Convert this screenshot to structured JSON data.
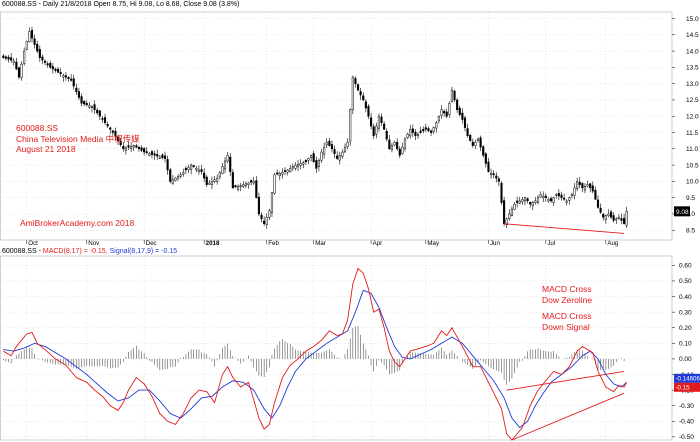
{
  "header_price": "600088.SS - Daily 21/8/2018 Open 8.75, Hi 9.08, Lo 8.68, Close 9.08 (3.8%)",
  "header_macd": {
    "prefix": "600088.SS - ",
    "macd_label": "MACD(8,17) = -0.15,",
    "signal_label": "Signal(8,17,9) = -0.15"
  },
  "annotations": {
    "ticker": "600088.SS",
    "company": "China Television Media 中视传媒",
    "date": "August 21 2018",
    "website": "AmiBrokerAcademy.com  2018",
    "cross1_line1": "MACD Cross",
    "cross1_line2": "Dow Zeroline",
    "cross2_line1": "MACD Cross",
    "cross2_line2": "Down Signal"
  },
  "colors": {
    "candle": "#000000",
    "macd": "#e31a1c",
    "signal": "#1f3ad6",
    "histogram": "#555555",
    "trendline": "#e31a1c",
    "grid": "#c8c8c8"
  },
  "chart_data": [
    {
      "type": "candlestick",
      "title": "600088.SS - Daily 21/8/2018 Open 8.75, Hi 9.08, Lo 8.68, Close 9.08 (3.8%)",
      "ylim": [
        8.2,
        15.2
      ],
      "yticks": [
        8.5,
        9.0,
        9.5,
        10.0,
        10.5,
        11.0,
        11.5,
        12.0,
        12.5,
        13.0,
        13.5,
        14.0,
        14.5,
        15.0
      ],
      "ytick_labels": [
        "8.5",
        "9.0",
        "9.5",
        "10.0",
        "10.5",
        "11.0",
        "11.5",
        "12.0",
        "12.5",
        "13.0",
        "13.5",
        "14.0",
        "14.5",
        "15.0"
      ],
      "x_labels": [
        "Oct",
        "Nov",
        "Dec",
        "2018",
        "Feb",
        "Mar",
        "Apr",
        "May",
        "Jun",
        "Jul",
        "Aug"
      ],
      "x_label_bar_index": [
        9,
        32,
        54,
        77,
        101,
        119,
        141,
        162,
        186,
        208,
        231
      ],
      "last_price_label": "9.08",
      "close_path": [
        [
          0,
          13.8
        ],
        [
          4,
          13.7
        ],
        [
          6,
          13.2
        ],
        [
          8,
          14.0
        ],
        [
          10,
          14.6
        ],
        [
          12,
          14.2
        ],
        [
          14,
          13.8
        ],
        [
          18,
          13.5
        ],
        [
          22,
          13.3
        ],
        [
          26,
          13.1
        ],
        [
          30,
          12.4
        ],
        [
          34,
          12.3
        ],
        [
          38,
          11.9
        ],
        [
          42,
          11.5
        ],
        [
          46,
          11.0
        ],
        [
          50,
          11.1
        ],
        [
          54,
          10.9
        ],
        [
          58,
          10.8
        ],
        [
          62,
          10.7
        ],
        [
          64,
          10.0
        ],
        [
          68,
          10.2
        ],
        [
          72,
          10.5
        ],
        [
          76,
          10.3
        ],
        [
          78,
          9.9
        ],
        [
          82,
          10.1
        ],
        [
          86,
          10.8
        ],
        [
          88,
          9.8
        ],
        [
          92,
          9.9
        ],
        [
          96,
          10.0
        ],
        [
          98,
          9.0
        ],
        [
          100,
          8.7
        ],
        [
          102,
          9.1
        ],
        [
          104,
          10.2
        ],
        [
          108,
          10.3
        ],
        [
          112,
          10.5
        ],
        [
          116,
          10.6
        ],
        [
          118,
          10.8
        ],
        [
          120,
          10.4
        ],
        [
          122,
          10.9
        ],
        [
          124,
          11.2
        ],
        [
          126,
          11.0
        ],
        [
          128,
          10.7
        ],
        [
          130,
          10.9
        ],
        [
          132,
          11.2
        ],
        [
          134,
          13.2
        ],
        [
          136,
          12.8
        ],
        [
          138,
          12.5
        ],
        [
          140,
          12.0
        ],
        [
          142,
          11.4
        ],
        [
          144,
          12.0
        ],
        [
          146,
          11.6
        ],
        [
          148,
          11.0
        ],
        [
          150,
          11.2
        ],
        [
          152,
          10.8
        ],
        [
          154,
          11.3
        ],
        [
          156,
          11.6
        ],
        [
          158,
          11.4
        ],
        [
          160,
          11.5
        ],
        [
          162,
          11.6
        ],
        [
          164,
          11.5
        ],
        [
          166,
          11.8
        ],
        [
          168,
          12.2
        ],
        [
          170,
          12.0
        ],
        [
          172,
          12.8
        ],
        [
          174,
          12.2
        ],
        [
          176,
          11.9
        ],
        [
          178,
          11.4
        ],
        [
          180,
          11.1
        ],
        [
          182,
          11.3
        ],
        [
          184,
          10.8
        ],
        [
          186,
          10.3
        ],
        [
          188,
          10.2
        ],
        [
          190,
          10.0
        ],
        [
          192,
          8.7
        ],
        [
          194,
          9.0
        ],
        [
          196,
          9.3
        ],
        [
          198,
          9.4
        ],
        [
          200,
          9.5
        ],
        [
          202,
          9.3
        ],
        [
          204,
          9.4
        ],
        [
          206,
          9.6
        ],
        [
          208,
          9.5
        ],
        [
          210,
          9.4
        ],
        [
          212,
          9.6
        ],
        [
          214,
          9.5
        ],
        [
          216,
          9.4
        ],
        [
          218,
          9.6
        ],
        [
          220,
          10.0
        ],
        [
          222,
          9.8
        ],
        [
          224,
          9.9
        ],
        [
          226,
          9.7
        ],
        [
          228,
          9.2
        ],
        [
          230,
          8.9
        ],
        [
          232,
          9.0
        ],
        [
          234,
          8.8
        ],
        [
          236,
          8.9
        ],
        [
          238,
          8.7
        ],
        [
          239,
          9.08
        ]
      ],
      "trendlines": [
        {
          "from": [
            192,
            8.7
          ],
          "to": [
            238,
            8.4
          ]
        }
      ]
    },
    {
      "type": "line",
      "title": "600088.SS - MACD(8,17) = -0.15, Signal(8,17,9) = -0.15",
      "ylim": [
        -0.52,
        0.66
      ],
      "yticks": [
        0.6,
        0.5,
        0.4,
        0.3,
        0.2,
        0.1,
        0.0,
        -0.1,
        -0.2,
        -0.3,
        -0.4,
        -0.5
      ],
      "ytick_labels": [
        "0.60",
        "0.50",
        "0.40",
        "0.30",
        "0.20",
        "0.10",
        "0.00",
        "-0.10",
        "-0.20",
        "-0.30",
        "-0.40",
        "-0.50"
      ],
      "value_labels": [
        "-0.14606",
        "-0.15"
      ],
      "series": [
        {
          "name": "MACD(8,17)",
          "points": [
            [
              0,
              0.05
            ],
            [
              3,
              0.02
            ],
            [
              5,
              0.08
            ],
            [
              7,
              0.12
            ],
            [
              9,
              0.16
            ],
            [
              11,
              0.17
            ],
            [
              13,
              0.1
            ],
            [
              16,
              0.06
            ],
            [
              20,
              0.0
            ],
            [
              24,
              -0.04
            ],
            [
              28,
              -0.12
            ],
            [
              32,
              -0.15
            ],
            [
              35,
              -0.2
            ],
            [
              38,
              -0.24
            ],
            [
              41,
              -0.3
            ],
            [
              44,
              -0.33
            ],
            [
              46,
              -0.28
            ],
            [
              48,
              -0.2
            ],
            [
              51,
              -0.12
            ],
            [
              54,
              -0.16
            ],
            [
              57,
              -0.24
            ],
            [
              60,
              -0.35
            ],
            [
              63,
              -0.4
            ],
            [
              66,
              -0.42
            ],
            [
              69,
              -0.35
            ],
            [
              72,
              -0.25
            ],
            [
              75,
              -0.2
            ],
            [
              78,
              -0.21
            ],
            [
              81,
              -0.28
            ],
            [
              84,
              -0.1
            ],
            [
              86,
              -0.05
            ],
            [
              88,
              -0.12
            ],
            [
              91,
              -0.18
            ],
            [
              94,
              -0.15
            ],
            [
              96,
              -0.26
            ],
            [
              98,
              -0.38
            ],
            [
              100,
              -0.45
            ],
            [
              102,
              -0.42
            ],
            [
              104,
              -0.28
            ],
            [
              107,
              -0.12
            ],
            [
              110,
              -0.04
            ],
            [
              113,
              0.0
            ],
            [
              116,
              0.05
            ],
            [
              119,
              0.08
            ],
            [
              122,
              0.12
            ],
            [
              125,
              0.18
            ],
            [
              128,
              0.15
            ],
            [
              130,
              0.16
            ],
            [
              132,
              0.25
            ],
            [
              134,
              0.48
            ],
            [
              136,
              0.58
            ],
            [
              138,
              0.55
            ],
            [
              140,
              0.45
            ],
            [
              142,
              0.3
            ],
            [
              144,
              0.32
            ],
            [
              146,
              0.2
            ],
            [
              148,
              0.05
            ],
            [
              150,
              -0.02
            ],
            [
              152,
              -0.05
            ],
            [
              154,
              0.0
            ],
            [
              156,
              0.05
            ],
            [
              158,
              0.06
            ],
            [
              160,
              0.07
            ],
            [
              162,
              0.08
            ],
            [
              165,
              0.1
            ],
            [
              168,
              0.18
            ],
            [
              170,
              0.15
            ],
            [
              172,
              0.2
            ],
            [
              174,
              0.14
            ],
            [
              177,
              0.05
            ],
            [
              180,
              -0.05
            ],
            [
              183,
              -0.05
            ],
            [
              186,
              -0.15
            ],
            [
              189,
              -0.25
            ],
            [
              191,
              -0.32
            ],
            [
              193,
              -0.48
            ],
            [
              195,
              -0.52
            ],
            [
              197,
              -0.48
            ],
            [
              199,
              -0.44
            ],
            [
              202,
              -0.3
            ],
            [
              205,
              -0.2
            ],
            [
              208,
              -0.14
            ],
            [
              211,
              -0.08
            ],
            [
              214,
              -0.1
            ],
            [
              217,
              -0.05
            ],
            [
              220,
              0.05
            ],
            [
              222,
              0.08
            ],
            [
              224,
              0.06
            ],
            [
              226,
              0.04
            ],
            [
              228,
              -0.08
            ],
            [
              231,
              -0.18
            ],
            [
              234,
              -0.21
            ],
            [
              236,
              -0.17
            ],
            [
              238,
              -0.18
            ],
            [
              239,
              -0.15
            ]
          ]
        },
        {
          "name": "Signal(8,17,9)",
          "points": [
            [
              0,
              0.06
            ],
            [
              4,
              0.05
            ],
            [
              8,
              0.07
            ],
            [
              12,
              0.1
            ],
            [
              16,
              0.08
            ],
            [
              20,
              0.04
            ],
            [
              24,
              0.0
            ],
            [
              28,
              -0.05
            ],
            [
              32,
              -0.1
            ],
            [
              36,
              -0.16
            ],
            [
              40,
              -0.22
            ],
            [
              44,
              -0.27
            ],
            [
              48,
              -0.25
            ],
            [
              52,
              -0.2
            ],
            [
              56,
              -0.2
            ],
            [
              60,
              -0.27
            ],
            [
              64,
              -0.35
            ],
            [
              68,
              -0.38
            ],
            [
              72,
              -0.32
            ],
            [
              76,
              -0.25
            ],
            [
              80,
              -0.24
            ],
            [
              84,
              -0.18
            ],
            [
              88,
              -0.14
            ],
            [
              92,
              -0.15
            ],
            [
              96,
              -0.2
            ],
            [
              100,
              -0.32
            ],
            [
              103,
              -0.38
            ],
            [
              106,
              -0.3
            ],
            [
              109,
              -0.18
            ],
            [
              112,
              -0.08
            ],
            [
              116,
              0.0
            ],
            [
              120,
              0.05
            ],
            [
              124,
              0.1
            ],
            [
              128,
              0.14
            ],
            [
              132,
              0.18
            ],
            [
              135,
              0.3
            ],
            [
              138,
              0.44
            ],
            [
              141,
              0.42
            ],
            [
              144,
              0.33
            ],
            [
              147,
              0.2
            ],
            [
              150,
              0.08
            ],
            [
              153,
              0.01
            ],
            [
              156,
              0.0
            ],
            [
              160,
              0.03
            ],
            [
              164,
              0.06
            ],
            [
              168,
              0.1
            ],
            [
              172,
              0.14
            ],
            [
              176,
              0.1
            ],
            [
              180,
              0.02
            ],
            [
              184,
              -0.06
            ],
            [
              188,
              -0.14
            ],
            [
              192,
              -0.25
            ],
            [
              195,
              -0.38
            ],
            [
              198,
              -0.44
            ],
            [
              201,
              -0.4
            ],
            [
              204,
              -0.3
            ],
            [
              207,
              -0.22
            ],
            [
              210,
              -0.15
            ],
            [
              214,
              -0.1
            ],
            [
              218,
              -0.05
            ],
            [
              222,
              0.02
            ],
            [
              225,
              0.05
            ],
            [
              228,
              0.0
            ],
            [
              231,
              -0.1
            ],
            [
              234,
              -0.16
            ],
            [
              237,
              -0.18
            ],
            [
              239,
              -0.15
            ]
          ]
        }
      ],
      "trendlines": [
        {
          "from": [
            195,
            -0.52
          ],
          "to": [
            238,
            -0.22
          ]
        },
        {
          "from": [
            193,
            -0.2
          ],
          "to": [
            238,
            -0.08
          ]
        }
      ]
    }
  ]
}
